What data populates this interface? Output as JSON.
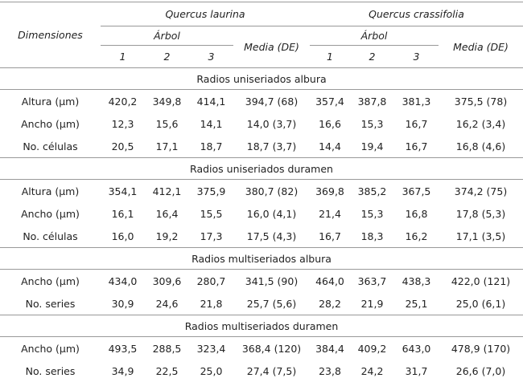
{
  "table": {
    "header": {
      "dimension": "Dimensiones",
      "species": [
        {
          "name": "Quercus laurina",
          "group": "Árbol",
          "trees": [
            "1",
            "2",
            "3"
          ],
          "mean": "Media (DE)"
        },
        {
          "name": "Quercus crassifolia",
          "group": "Árbol",
          "trees": [
            "1",
            "2",
            "3"
          ],
          "mean": "Media (DE)"
        }
      ]
    },
    "sections": [
      {
        "title": "Radios uniseriados albura",
        "rows": [
          [
            "Altura (µm)",
            "420,2",
            "349,8",
            "414,1",
            "394,7 (68)",
            "357,4",
            "387,8",
            "381,3",
            "375,5 (78)"
          ],
          [
            "Ancho (µm)",
            "12,3",
            "15,6",
            "14,1",
            "14,0 (3,7)",
            "16,6",
            "15,3",
            "16,7",
            "16,2 (3,4)"
          ],
          [
            "No. células",
            "20,5",
            "17,1",
            "18,7",
            "18,7 (3,7)",
            "14,4",
            "19,4",
            "16,7",
            "16,8 (4,6)"
          ]
        ]
      },
      {
        "title": "Radios uniseriados duramen",
        "rows": [
          [
            "Altura (µm)",
            "354,1",
            "412,1",
            "375,9",
            "380,7 (82)",
            "369,8",
            "385,2",
            "367,5",
            "374,2 (75)"
          ],
          [
            "Ancho (µm)",
            "16,1",
            "16,4",
            "15,5",
            "16,0 (4,1)",
            "21,4",
            "15,3",
            "16,8",
            "17,8 (5,3)"
          ],
          [
            "No. células",
            "16,0",
            "19,2",
            "17,3",
            "17,5 (4,3)",
            "16,7",
            "18,3",
            "16,2",
            "17,1 (3,5)"
          ]
        ]
      },
      {
        "title": "Radios multiseriados albura",
        "rows": [
          [
            "Ancho (µm)",
            "434,0",
            "309,6",
            "280,7",
            "341,5 (90)",
            "464,0",
            "363,7",
            "438,3",
            "422,0 (121)"
          ],
          [
            "No. series",
            "30,9",
            "24,6",
            "21,8",
            "25,7 (5,6)",
            "28,2",
            "21,9",
            "25,1",
            "25,0 (6,1)"
          ]
        ]
      },
      {
        "title": "Radios multiseriados duramen",
        "rows": [
          [
            "Ancho (µm)",
            "493,5",
            "288,5",
            "323,4",
            "368,4 (120)",
            "384,4",
            "409,2",
            "643,0",
            "478,9 (170)"
          ],
          [
            "No. series",
            "34,9",
            "22,5",
            "25,0",
            "27,4 (7,5)",
            "23,8",
            "24,2",
            "31,7",
            "26,6 (7,0)"
          ]
        ]
      }
    ]
  }
}
